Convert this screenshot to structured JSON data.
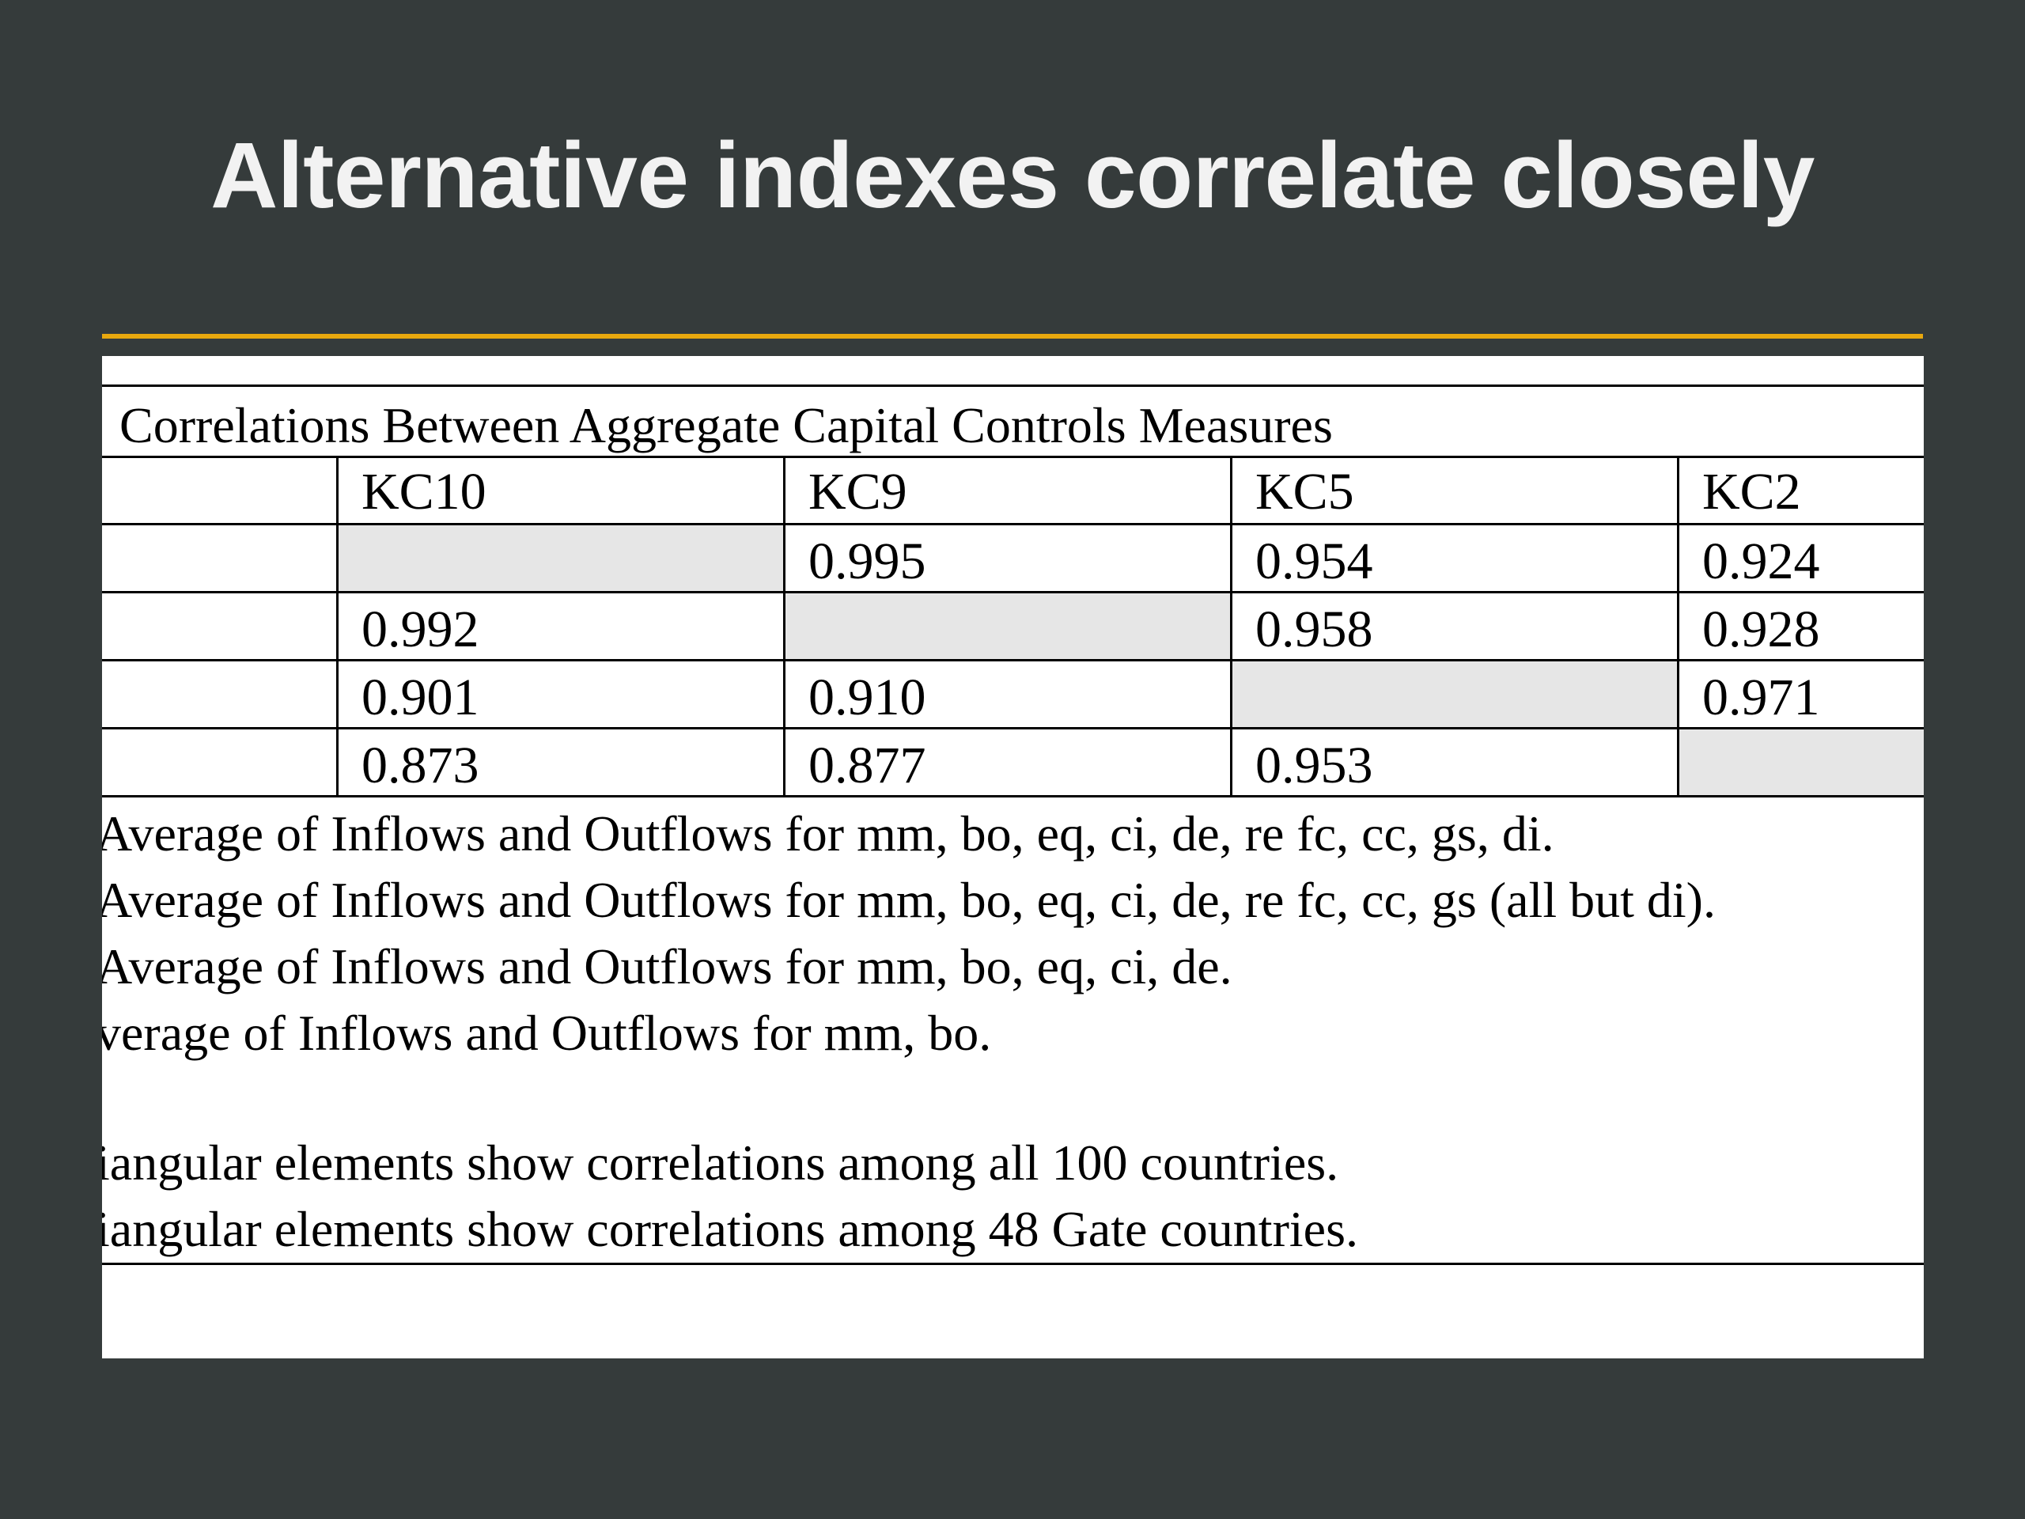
{
  "slide": {
    "title": "Alternative indexes correlate closely"
  },
  "table": {
    "caption": "Correlations Between Aggregate Capital Controls Measures",
    "columns": [
      "KC10",
      "KC9",
      "KC5",
      "KC2"
    ],
    "rows": [
      [
        "",
        "0.995",
        "0.954",
        "0.924"
      ],
      [
        "0.992",
        "",
        "0.958",
        "0.928"
      ],
      [
        "0.901",
        "0.910",
        "",
        "0.971"
      ],
      [
        "0.873",
        "0.877",
        "0.953",
        ""
      ]
    ]
  },
  "notes": {
    "defs": [
      "Average of Inflows and Outflows for mm, bo, eq, ci, de, re fc, cc, gs, di.",
      "Average of Inflows and Outflows for mm, bo, eq, ci, de, re fc, cc, gs (all but di).",
      "Average of Inflows and Outflows for mm, bo, eq, ci, de.",
      "verage of Inflows and Outflows for mm, bo."
    ],
    "footnotes": [
      "iangular elements show correlations among all 100 countries.",
      "iangular elements show correlations among 48 Gate countries."
    ]
  }
}
